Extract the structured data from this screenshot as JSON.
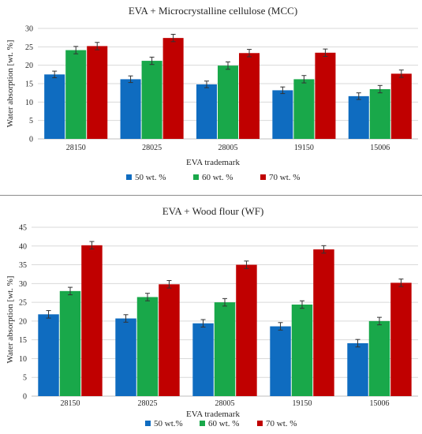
{
  "colors": {
    "s50": "#0f6cc0",
    "s60": "#19a84a",
    "s70": "#c00000",
    "grid": "#d9d9d9",
    "axis": "#bfbfbf"
  },
  "chart_data": [
    {
      "type": "bar",
      "title": "EVA + Microcrystalline cellulose (MCC)",
      "xlabel": "EVA trademark",
      "ylabel": "Water absorption [wt. %]",
      "ylim": [
        0,
        30
      ],
      "yticks": [
        "0",
        "5",
        "10",
        "15",
        "20",
        "25",
        "30"
      ],
      "grid": true,
      "legend_position": "bottom",
      "categories": [
        "28150",
        "28025",
        "28005",
        "19150",
        "15006"
      ],
      "series": [
        {
          "name": "50 wt. %",
          "values": [
            17.5,
            16.2,
            14.8,
            13.2,
            11.6
          ],
          "errors": [
            0.9,
            0.9,
            0.9,
            0.9,
            0.9
          ]
        },
        {
          "name": "60 wt. %",
          "values": [
            24.1,
            21.2,
            19.9,
            16.2,
            13.5
          ],
          "errors": [
            1.0,
            1.0,
            1.0,
            1.0,
            1.0
          ]
        },
        {
          "name": "70 wt. %",
          "values": [
            25.2,
            27.4,
            23.3,
            23.4,
            17.7
          ],
          "errors": [
            1.0,
            1.0,
            1.0,
            1.0,
            1.0
          ]
        }
      ]
    },
    {
      "type": "bar",
      "title": "EVA + Wood flour (WF)",
      "xlabel": "EVA trademark",
      "ylabel": "Water absorption [wt. %]",
      "ylim": [
        0,
        45
      ],
      "yticks": [
        "0",
        "5",
        "10",
        "15",
        "20",
        "25",
        "30",
        "35",
        "40",
        "45"
      ],
      "grid": true,
      "legend_position": "bottom",
      "categories": [
        "28150",
        "28025",
        "28005",
        "19150",
        "15006"
      ],
      "series": [
        {
          "name": "50 wt.%",
          "values": [
            21.8,
            20.7,
            19.4,
            18.6,
            14.1
          ],
          "errors": [
            1.0,
            1.0,
            1.0,
            1.0,
            1.0
          ]
        },
        {
          "name": "60 wt. %",
          "values": [
            28.0,
            26.4,
            25.0,
            24.4,
            20.0
          ],
          "errors": [
            1.0,
            1.0,
            1.0,
            1.0,
            1.0
          ]
        },
        {
          "name": "70 wt. %",
          "values": [
            40.2,
            29.8,
            35.0,
            39.1,
            30.2
          ],
          "errors": [
            1.0,
            1.0,
            1.0,
            1.0,
            1.0
          ]
        }
      ]
    }
  ]
}
